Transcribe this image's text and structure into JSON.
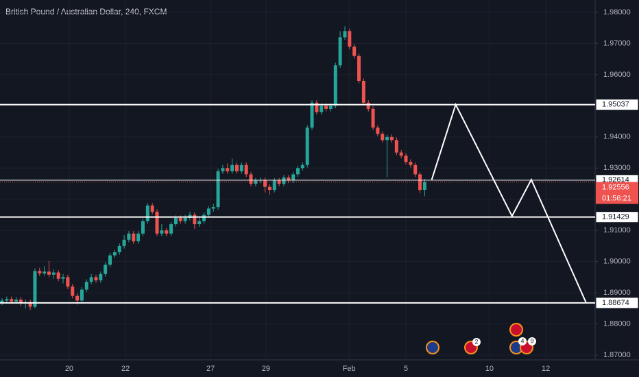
{
  "chart_data": {
    "type": "candlestick",
    "title": "British Pound / Australian Dollar, 240, FXCM",
    "up_color": "#26a69a",
    "down_color": "#ef5350",
    "xlim": [
      0,
      126
    ],
    "ylim": [
      1.87,
      1.98
    ],
    "xticks": [
      {
        "value": 14.3,
        "label": "20"
      },
      {
        "value": 26.3,
        "label": "22"
      },
      {
        "value": 44.4,
        "label": "27"
      },
      {
        "value": 56.2,
        "label": "29"
      },
      {
        "value": 73.9,
        "label": "Feb"
      },
      {
        "value": 86,
        "label": "5"
      },
      {
        "value": 103.8,
        "label": "10"
      },
      {
        "value": 115.8,
        "label": "12"
      }
    ],
    "yticks": [
      {
        "value": 1.87,
        "label": "1.87000"
      },
      {
        "value": 1.88,
        "label": "1.88000"
      },
      {
        "value": 1.89,
        "label": "1.89000"
      },
      {
        "value": 1.9,
        "label": "1.90000"
      },
      {
        "value": 1.91,
        "label": "1.91000"
      },
      {
        "value": 1.92,
        "label": "1.92000"
      },
      {
        "value": 1.93,
        "label": "1.93000"
      },
      {
        "value": 1.94,
        "label": "1.94000"
      },
      {
        "value": 1.95,
        "label": "1.95000"
      },
      {
        "value": 1.96,
        "label": "1.96000"
      },
      {
        "value": 1.97,
        "label": "1.97000"
      },
      {
        "value": 1.98,
        "label": "1.98000"
      }
    ],
    "grid": true,
    "open": [
      1.8868,
      1.8875,
      1.888,
      1.8872,
      1.8878,
      1.8866,
      1.887,
      1.8855,
      1.897,
      1.8962,
      1.8968,
      1.8958,
      1.8965,
      1.8945,
      1.895,
      1.892,
      1.889,
      1.8875,
      1.891,
      1.8935,
      1.895,
      1.894,
      1.896,
      1.899,
      1.902,
      1.903,
      1.905,
      1.907,
      1.909,
      1.9065,
      1.909,
      1.913,
      1.918,
      1.916,
      1.909,
      1.91,
      1.909,
      1.912,
      1.914,
      1.913,
      1.914,
      1.915,
      1.912,
      1.913,
      1.915,
      1.917,
      1.9175,
      1.929,
      1.93,
      1.929,
      1.931,
      1.929,
      1.931,
      1.928,
      1.925,
      1.926,
      1.9262,
      1.924,
      1.923,
      1.926,
      1.925,
      1.927,
      1.926,
      1.928,
      1.93,
      1.931,
      1.943,
      1.951,
      1.948,
      1.95,
      1.949,
      1.95,
      1.963,
      1.972,
      1.974,
      1.969,
      1.966,
      1.958,
      1.951,
      1.949,
      1.943,
      1.941,
      1.939,
      1.94,
      1.939,
      1.935,
      1.934,
      1.932,
      1.931,
      1.928,
      1.923
    ],
    "high": [
      1.8883,
      1.8888,
      1.8888,
      1.8886,
      1.8886,
      1.8878,
      1.8878,
      1.8978,
      1.898,
      1.8985,
      1.9002,
      1.8975,
      1.8972,
      1.896,
      1.8958,
      1.8928,
      1.8898,
      1.8918,
      1.8943,
      1.896,
      1.8958,
      1.8968,
      1.8998,
      1.9028,
      1.9038,
      1.9058,
      1.9085,
      1.9098,
      1.9098,
      1.9098,
      1.9138,
      1.9188,
      1.9188,
      1.9168,
      1.912,
      1.9108,
      1.9128,
      1.9148,
      1.9148,
      1.915,
      1.916,
      1.9158,
      1.914,
      1.9158,
      1.9178,
      1.9185,
      1.9298,
      1.931,
      1.9315,
      1.933,
      1.9318,
      1.9318,
      1.9318,
      1.9288,
      1.9268,
      1.927,
      1.927,
      1.9248,
      1.9268,
      1.9268,
      1.9278,
      1.9278,
      1.9288,
      1.9308,
      1.9318,
      1.9438,
      1.9518,
      1.9518,
      1.9508,
      1.9508,
      1.9508,
      1.9638,
      1.974,
      1.9755,
      1.9748,
      1.9698,
      1.9668,
      1.9588,
      1.9518,
      1.9498,
      1.9438,
      1.9418,
      1.9408,
      1.9408,
      1.9398,
      1.9358,
      1.9348,
      1.9328,
      1.9318,
      1.9288,
      1.9265
    ],
    "low": [
      1.886,
      1.8867,
      1.8864,
      1.8864,
      1.8858,
      1.885,
      1.8845,
      1.885,
      1.8954,
      1.8955,
      1.895,
      1.8945,
      1.8937,
      1.893,
      1.8912,
      1.8882,
      1.8862,
      1.8867,
      1.8902,
      1.8927,
      1.8932,
      1.8932,
      1.8952,
      1.8982,
      1.9012,
      1.9022,
      1.9042,
      1.9062,
      1.9057,
      1.9057,
      1.9082,
      1.9122,
      1.9152,
      1.9082,
      1.9082,
      1.9082,
      1.9082,
      1.9112,
      1.9122,
      1.9122,
      1.9132,
      1.9105,
      1.9112,
      1.9122,
      1.9142,
      1.916,
      1.9167,
      1.9282,
      1.9282,
      1.9282,
      1.9282,
      1.9282,
      1.9272,
      1.9242,
      1.9242,
      1.9252,
      1.9222,
      1.9215,
      1.9222,
      1.9242,
      1.9242,
      1.9252,
      1.9252,
      1.9272,
      1.9292,
      1.9302,
      1.9422,
      1.9472,
      1.9472,
      1.9482,
      1.9482,
      1.9492,
      1.9622,
      1.9712,
      1.9682,
      1.9652,
      1.9572,
      1.9502,
      1.9482,
      1.9422,
      1.9402,
      1.9382,
      1.927,
      1.9382,
      1.9342,
      1.9332,
      1.9312,
      1.9302,
      1.9272,
      1.922,
      1.921
    ],
    "close": [
      1.8875,
      1.888,
      1.8872,
      1.8878,
      1.8866,
      1.887,
      1.8855,
      1.897,
      1.8962,
      1.8968,
      1.8958,
      1.8965,
      1.8945,
      1.895,
      1.892,
      1.889,
      1.8875,
      1.891,
      1.8935,
      1.895,
      1.894,
      1.896,
      1.899,
      1.902,
      1.903,
      1.905,
      1.907,
      1.909,
      1.9065,
      1.909,
      1.913,
      1.918,
      1.916,
      1.909,
      1.91,
      1.909,
      1.912,
      1.914,
      1.913,
      1.914,
      1.915,
      1.912,
      1.913,
      1.915,
      1.917,
      1.9175,
      1.929,
      1.93,
      1.929,
      1.931,
      1.929,
      1.931,
      1.928,
      1.925,
      1.926,
      1.9262,
      1.924,
      1.923,
      1.926,
      1.925,
      1.927,
      1.926,
      1.928,
      1.93,
      1.931,
      1.943,
      1.951,
      1.948,
      1.95,
      1.949,
      1.95,
      1.963,
      1.972,
      1.974,
      1.969,
      1.966,
      1.958,
      1.951,
      1.949,
      1.943,
      1.941,
      1.939,
      1.94,
      1.939,
      1.935,
      1.934,
      1.932,
      1.931,
      1.928,
      1.923,
      1.92556
    ],
    "levels": [
      1.95037,
      1.92614,
      1.91429,
      1.88674
    ],
    "last_price": 1.92556,
    "countdown": "01:56:21",
    "projection": {
      "x": [
        91.5,
        96.6,
        108.6,
        112.7,
        124.4
      ],
      "y": [
        1.9263,
        1.9504,
        1.9146,
        1.9263,
        1.8867
      ]
    },
    "event_badges": [
      "2",
      "4",
      "9"
    ]
  }
}
